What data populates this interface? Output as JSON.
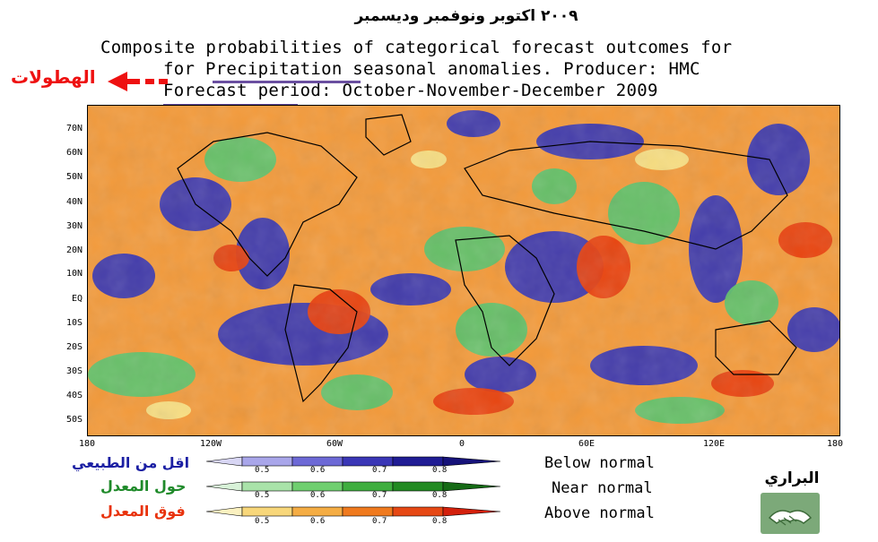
{
  "header": {
    "arabic_title": "٢٠٠٩ اكتوبر ونوفمبر وديسمبر",
    "title_line_1": "Composite probabilities of categorical forecast outcomes for",
    "title_line_2": "for Precipitation seasonal anomalies. Producer: HMC",
    "title_line_3": "Forecast period: October-November-December 2009",
    "arrow_label": "الهطولات"
  },
  "map": {
    "lat_labels": [
      "70N",
      "60N",
      "50N",
      "40N",
      "30N",
      "20N",
      "10N",
      "EQ",
      "10S",
      "20S",
      "30S",
      "40S",
      "50S"
    ],
    "lon_labels": [
      "180",
      "120W",
      "60W",
      "0",
      "60E",
      "120E",
      "180"
    ]
  },
  "legend": {
    "categories": [
      {
        "ar_label": "اقل من الطبيعي",
        "en_label": "Below normal",
        "color": "#1b1fa3",
        "ticks": [
          "0.5",
          "0.6",
          "0.7",
          "0.8"
        ]
      },
      {
        "ar_label": "حول المعدل",
        "en_label": "Near normal",
        "color": "#1f8a2a",
        "ticks": [
          "0.5",
          "0.6",
          "0.7",
          "0.8"
        ]
      },
      {
        "ar_label": "فوق المعدل",
        "en_label": "Above normal",
        "color": "#e8320c",
        "ticks": [
          "0.5",
          "0.6",
          "0.7",
          "0.8"
        ]
      }
    ],
    "arrow_color": "#ee1111"
  },
  "producer": {
    "name": "البراري",
    "logo_icon": "handshake-icon"
  }
}
